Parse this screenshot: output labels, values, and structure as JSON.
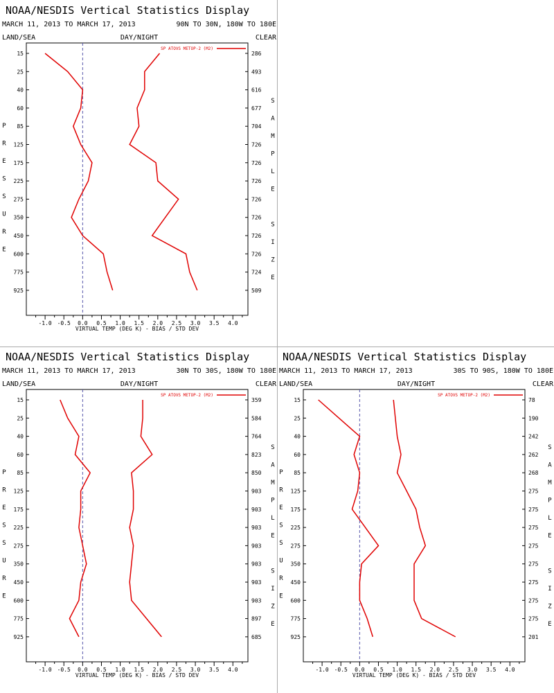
{
  "header": {
    "title": "NOAA/NESDIS Vertical Statistics Display",
    "date_range": "MARCH 11, 2013 TO MARCH 17, 2013",
    "left_label": "LAND/SEA",
    "center_label": "DAY/NIGHT",
    "right_label": "CLEAR",
    "pressure_label": "PRESSURE",
    "sample_label": "SAMPLE SIZE",
    "xlabel": "VIRTUAL TEMP (DEG K) - BIAS / STD DEV",
    "legend_label": "SP ATOVS METOP-2 (M2)"
  },
  "colors": {
    "line": "#e00000",
    "zero_line": "#5555aa",
    "divider": "#aaaaaa"
  },
  "chart_data": [
    {
      "type": "line",
      "region": "90N TO 30N, 180W TO 180E",
      "y_ticks": [
        "15",
        "25",
        "40",
        "60",
        "85",
        "125",
        "175",
        "225",
        "275",
        "350",
        "450",
        "600",
        "775",
        "925"
      ],
      "x_ticks": [
        -1.0,
        -0.5,
        0.0,
        0.5,
        1.0,
        1.5,
        2.0,
        2.5,
        3.0,
        3.5,
        4.0
      ],
      "x_tick_labels": [
        "-1.0",
        "-0.5",
        "0.0",
        "0.5",
        "1.0",
        "1.5",
        "2.0",
        "2.5",
        "3.0",
        "3.5",
        "4.0"
      ],
      "xlim": [
        -1.5,
        4.4
      ],
      "sample_sizes": [
        "286",
        "493",
        "616",
        "677",
        "704",
        "726",
        "726",
        "726",
        "726",
        "726",
        "726",
        "726",
        "724",
        "509"
      ],
      "series": [
        {
          "name": "bias",
          "values": [
            -1.0,
            -0.4,
            0.0,
            -0.05,
            -0.25,
            -0.05,
            0.25,
            0.15,
            -0.1,
            -0.3,
            0.0,
            0.55,
            0.65,
            0.8
          ]
        },
        {
          "name": "std dev",
          "values": [
            2.05,
            1.65,
            1.65,
            1.45,
            1.5,
            1.25,
            1.95,
            2.0,
            2.55,
            2.2,
            1.85,
            2.75,
            2.85,
            3.05
          ]
        }
      ]
    },
    {
      "type": "line",
      "region": "30N TO 30S, 180W TO 180E",
      "y_ticks": [
        "15",
        "25",
        "40",
        "60",
        "85",
        "125",
        "175",
        "225",
        "275",
        "350",
        "450",
        "600",
        "775",
        "925"
      ],
      "x_ticks": [
        -1.0,
        -0.5,
        0.0,
        0.5,
        1.0,
        1.5,
        2.0,
        2.5,
        3.0,
        3.5,
        4.0
      ],
      "x_tick_labels": [
        "-1.0",
        "-0.5",
        "0.0",
        "0.5",
        "1.0",
        "1.5",
        "2.0",
        "2.5",
        "3.0",
        "3.5",
        "4.0"
      ],
      "xlim": [
        -1.5,
        4.4
      ],
      "sample_sizes": [
        "359",
        "584",
        "764",
        "823",
        "850",
        "903",
        "903",
        "903",
        "903",
        "903",
        "903",
        "903",
        "897",
        "685"
      ],
      "series": [
        {
          "name": "bias",
          "values": [
            -0.6,
            -0.4,
            -0.1,
            -0.2,
            0.2,
            -0.05,
            -0.05,
            -0.1,
            0.0,
            0.1,
            -0.05,
            -0.1,
            -0.35,
            -0.1
          ]
        },
        {
          "name": "std dev",
          "values": [
            1.6,
            1.6,
            1.55,
            1.85,
            1.3,
            1.35,
            1.35,
            1.25,
            1.35,
            1.3,
            1.25,
            1.3,
            1.7,
            2.1
          ]
        }
      ]
    },
    {
      "type": "line",
      "region": "30S TO 90S, 180W TO 180E",
      "y_ticks": [
        "15",
        "25",
        "40",
        "60",
        "85",
        "125",
        "175",
        "225",
        "275",
        "350",
        "450",
        "600",
        "775",
        "925"
      ],
      "x_ticks": [
        -1.0,
        -0.5,
        0.0,
        0.5,
        1.0,
        1.5,
        2.0,
        2.5,
        3.0,
        3.5,
        4.0
      ],
      "x_tick_labels": [
        "-1.0",
        "-0.5",
        "0.0",
        "0.5",
        "1.0",
        "1.5",
        "2.0",
        "2.5",
        "3.0",
        "3.5",
        "4.0"
      ],
      "xlim": [
        -1.5,
        4.4
      ],
      "sample_sizes": [
        "78",
        "190",
        "242",
        "262",
        "268",
        "275",
        "275",
        "275",
        "275",
        "275",
        "275",
        "275",
        "275",
        "201"
      ],
      "series": [
        {
          "name": "bias",
          "values": [
            -1.1,
            -0.55,
            0.0,
            -0.15,
            0.0,
            -0.05,
            -0.2,
            0.15,
            0.5,
            0.05,
            0.0,
            0.0,
            0.2,
            0.35
          ]
        },
        {
          "name": "std dev",
          "values": [
            0.9,
            0.95,
            1.0,
            1.1,
            1.0,
            1.25,
            1.5,
            1.6,
            1.75,
            1.45,
            1.45,
            1.45,
            1.65,
            2.55
          ]
        }
      ]
    }
  ]
}
